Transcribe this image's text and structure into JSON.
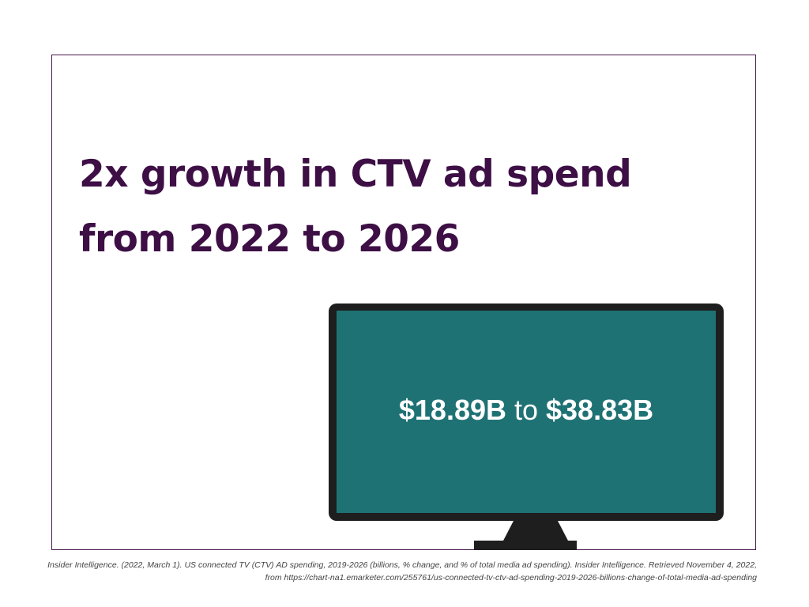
{
  "headline": {
    "line1": "2x growth in CTV ad spend",
    "line2": "from 2022 to 2026"
  },
  "tv_screen": {
    "from_value": "$18.89B",
    "connector": "to",
    "to_value": "$38.83B"
  },
  "citation": {
    "line1": "Insider Intelligence. (2022, March 1). US connected TV (CTV) AD spending, 2019-2026 (billions, % change, and % of total media ad spending). Insider Intelligence. Retrieved November 4, 2022,",
    "line2": "from https://chart-na1.emarketer.com/255761/us-connected-tv-ctv-ad-spending-2019-2026-billions-change-of-total-media-ad-spending"
  },
  "colors": {
    "headline": "#3d0f45",
    "frame_border": "#4a1a4e",
    "tv_body": "#1e1e1e",
    "tv_screen": "#1f7274",
    "screen_text": "#ffffff"
  },
  "icons": {
    "tv": "television-icon"
  }
}
